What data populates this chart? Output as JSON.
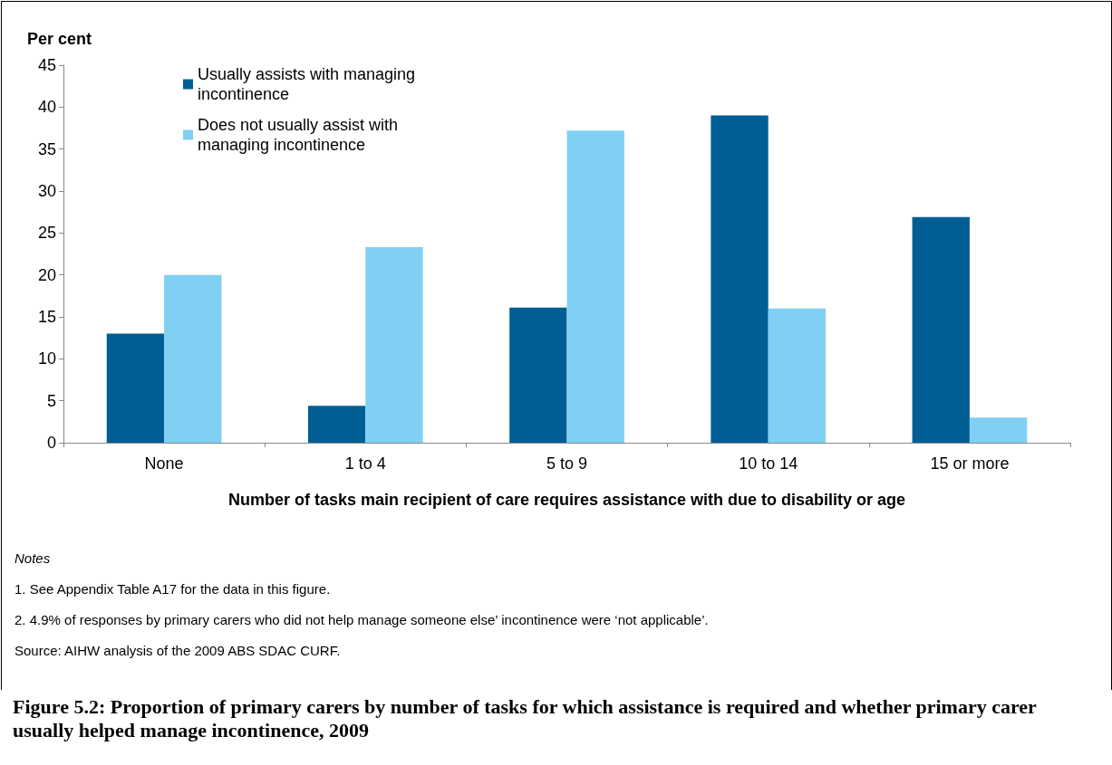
{
  "chart_data": {
    "type": "bar",
    "title": "Figure 5.2: Proportion of primary carers by number of tasks for which assistance is required and whether primary carer usually helped manage incontinence, 2009",
    "xlabel": "Number of tasks main recipient of care requires assistance with due to disability or age",
    "ylabel": "Per cent",
    "categories": [
      "None",
      "1 to 4",
      "5 to 9",
      "10 to 14",
      "15 or more"
    ],
    "series": [
      {
        "name": "Usually assists with managing incontinence",
        "color": "#005e94",
        "values": [
          13.0,
          4.4,
          16.1,
          39.0,
          26.9
        ]
      },
      {
        "name": "Does not usually assist with managing incontinence",
        "color": "#80d0f4",
        "values": [
          20.0,
          23.3,
          37.2,
          16.0,
          3.0
        ]
      }
    ],
    "ylim": [
      0,
      45
    ],
    "yticks": [
      0,
      5,
      10,
      15,
      20,
      25,
      30,
      35,
      40,
      45
    ],
    "grid": false,
    "legend": "top left",
    "annotations": [
      "Notes",
      "1.    See Appendix Table A17 for the data in this figure.",
      "2.    4.9% of responses by primary carers who did not help manage someone else’ incontinence were ‘not applicable’.",
      "Source: AIHW analysis of the 2009 ABS SDAC CURF."
    ]
  }
}
